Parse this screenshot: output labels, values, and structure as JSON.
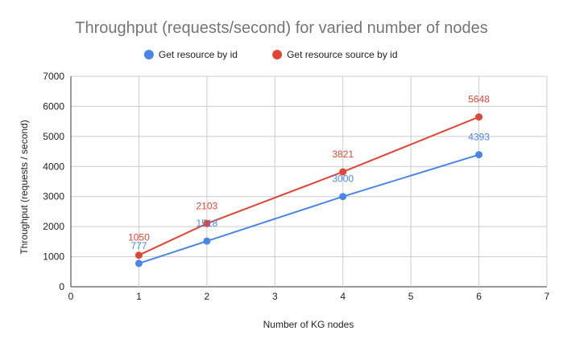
{
  "chart_data": {
    "type": "line",
    "title": "Throughput (requests/second) for varied number of nodes",
    "xlabel": "Number of KG nodes",
    "ylabel": "Throughput (requests / second)",
    "xlim": [
      0,
      7
    ],
    "ylim": [
      0,
      7000
    ],
    "x_ticks": [
      0,
      1,
      2,
      3,
      4,
      5,
      6,
      7
    ],
    "y_ticks": [
      0,
      1000,
      2000,
      3000,
      4000,
      5000,
      6000,
      7000
    ],
    "grid": true,
    "legend_position": "top",
    "series": [
      {
        "name": "Get resource by id",
        "color": "#4a86e8",
        "x": [
          1,
          2,
          4,
          6
        ],
        "y": [
          777,
          1518,
          3000,
          4393
        ],
        "labels": [
          "777",
          "1518",
          "3000",
          "4393"
        ]
      },
      {
        "name": "Get resource source by id",
        "color": "#e04535",
        "x": [
          1,
          2,
          4,
          6
        ],
        "y": [
          1050,
          2103,
          3821,
          5648
        ],
        "labels": [
          "1050",
          "2103",
          "3821",
          "5648"
        ]
      }
    ]
  }
}
